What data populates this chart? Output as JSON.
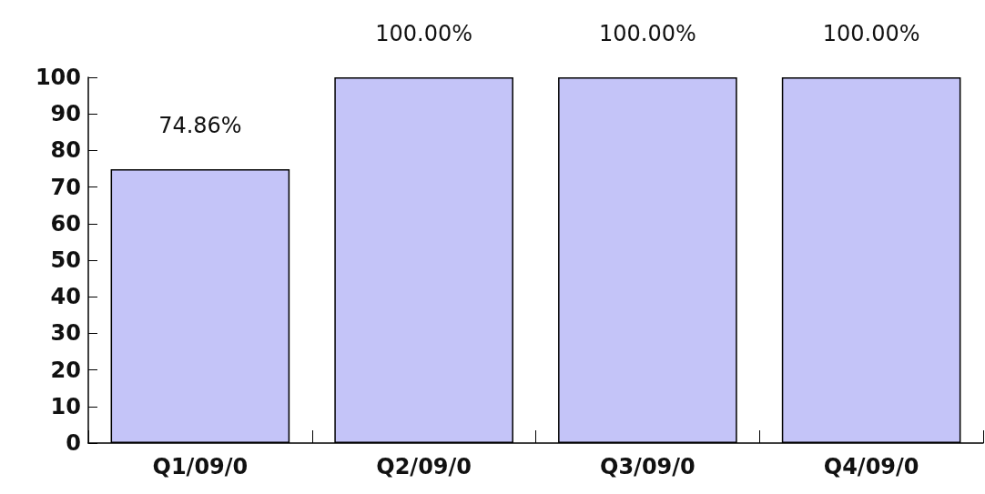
{
  "chart_data": {
    "type": "bar",
    "categories": [
      "Q1/09/0",
      "Q2/09/0",
      "Q3/09/0",
      "Q4/09/0"
    ],
    "values": [
      74.86,
      100,
      100,
      100
    ],
    "value_labels": [
      "74.86%",
      "100.00%",
      "100.00%",
      "100.00%"
    ],
    "color": "#c4c4f8",
    "ylim": [
      0,
      100
    ],
    "yticks": [
      0,
      10,
      20,
      30,
      40,
      50,
      60,
      70,
      80,
      90,
      100
    ],
    "grid": false
  }
}
